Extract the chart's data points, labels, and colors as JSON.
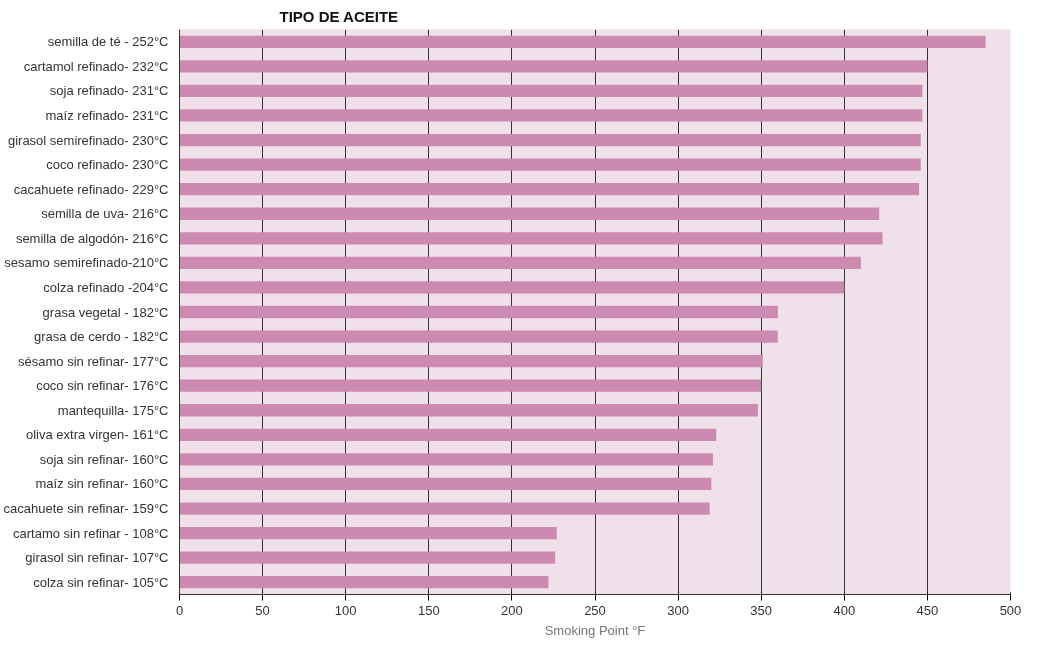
{
  "chart_data": {
    "type": "bar",
    "orientation": "horizontal",
    "title": "TIPO DE ACEITE",
    "xlabel": "Smoking Point °F",
    "categories": [
      "semilla de té - 252°C",
      "cartamol refinado- 232°C",
      "soja refinado- 231°C",
      "maíz refinado- 231°C",
      "girasol semirefinado- 230°C",
      "coco refinado- 230°C",
      "cacahuete refinado- 229°C",
      "semilla de uva- 216°C",
      "semilla de algodón- 216°C",
      "sesamo semirefinado-210°C",
      "colza refinado -204°C",
      "grasa vegetal - 182°C",
      "grasa de cerdo - 182°C",
      "sésamo sin refinar- 177°C",
      "coco sin refinar- 176°C",
      "mantequilla- 175°C",
      "oliva extra virgen- 161°C",
      "soja sin refinar- 160°C",
      "maíz sin refinar- 160°C",
      "cacahuete sin refinar- 159°C",
      "cartamo sin refinar - 108°C",
      "girasol sin refinar- 107°C",
      "colza sin refinar- 105°C"
    ],
    "values": [
      485,
      450,
      447,
      447,
      446,
      446,
      445,
      421,
      423,
      410,
      400,
      360,
      360,
      351,
      350,
      348,
      323,
      321,
      320,
      319,
      227,
      226,
      222
    ],
    "color": "#cc8ab0",
    "xlim": [
      0,
      500
    ],
    "xticks": [
      0,
      50,
      100,
      150,
      200,
      250,
      300,
      350,
      400,
      450,
      500
    ],
    "grid": "x"
  }
}
